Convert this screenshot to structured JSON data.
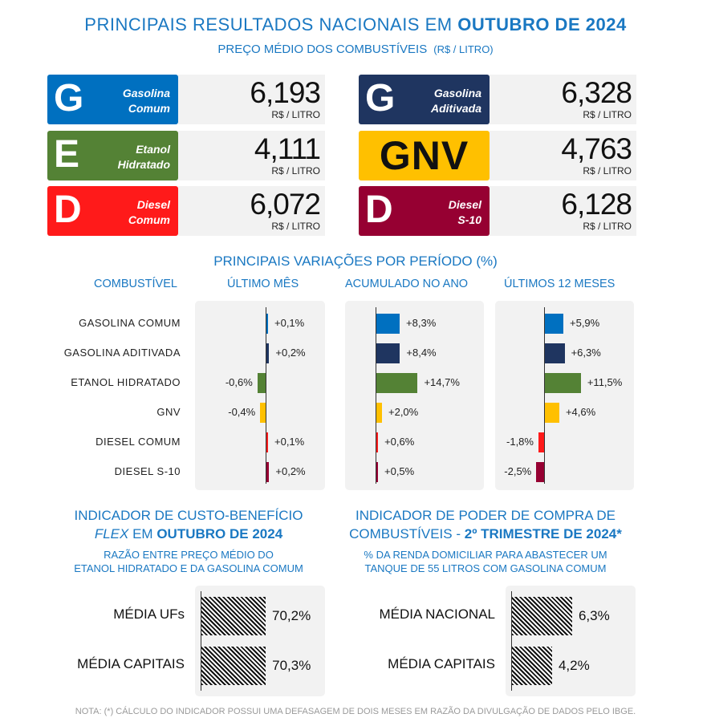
{
  "header": {
    "title_prefix": "PRINCIPAIS RESULTADOS NACIONAIS EM",
    "title_highlight": "OUTUBRO DE 2024",
    "subtitle": "PREÇO MÉDIO DOS COMBUSTÍVEIS",
    "subtitle_unit": "(R$ / LITRO)"
  },
  "prices": [
    {
      "letter": "G",
      "name1": "Gasolina",
      "name2": "Comum",
      "value": "6,193",
      "unit": "R$ / LITRO",
      "color": "#0070c0"
    },
    {
      "letter": "E",
      "name1": "Etanol",
      "name2": "Hidratado",
      "value": "4,111",
      "unit": "R$ / LITRO",
      "color": "#548235"
    },
    {
      "letter": "D",
      "name1": "Diesel",
      "name2": "Comum",
      "value": "6,072",
      "unit": "R$ / LITRO",
      "color": "#ff1a1a"
    },
    {
      "letter": "G",
      "name1": "Gasolina",
      "name2": "Aditivada",
      "value": "6,328",
      "unit": "R$ / LITRO",
      "color": "#1f3560"
    },
    {
      "letter": "GNV",
      "name1": "",
      "name2": "",
      "value": "4,763",
      "unit": "R$ / LITRO",
      "color": "#ffc000"
    },
    {
      "letter": "D",
      "name1": "Diesel",
      "name2": "S-10",
      "value": "6,128",
      "unit": "R$ / LITRO",
      "color": "#960032"
    }
  ],
  "chart_data": [
    {
      "type": "bar",
      "title": "PRINCIPAIS VARIAÇÕES POR PERÍODO (%)",
      "category_header": "COMBUSTÍVEL",
      "categories": [
        "GASOLINA COMUM",
        "GASOLINA ADITIVADA",
        "ETANOL HIDRATADO",
        "GNV",
        "DIESEL COMUM",
        "DIESEL  S-10"
      ],
      "colors": [
        "#0070c0",
        "#1f3560",
        "#548235",
        "#ffc000",
        "#ff1a1a",
        "#960032"
      ],
      "series": [
        {
          "name": "ÚLTIMO MÊS",
          "values": [
            0.1,
            0.2,
            -0.6,
            -0.4,
            0.1,
            0.2
          ],
          "labels": [
            "+0,1%",
            "+0,2%",
            "-0,6%",
            "-0,4%",
            "+0,1%",
            "+0,2%"
          ]
        },
        {
          "name": "ACUMULADO NO ANO",
          "values": [
            8.3,
            8.4,
            14.7,
            2.0,
            0.6,
            0.5
          ],
          "labels": [
            "+8,3%",
            "+8,4%",
            "+14,7%",
            "+2,0%",
            "+0,6%",
            "+0,5%"
          ]
        },
        {
          "name": "ÚLTIMOS 12 MESES",
          "values": [
            5.9,
            6.3,
            11.5,
            4.6,
            -1.8,
            -2.5
          ],
          "labels": [
            "+5,9%",
            "+6,3%",
            "+11,5%",
            "+4,6%",
            "-1,8%",
            "-2,5%"
          ]
        }
      ]
    },
    {
      "type": "bar",
      "title_line1": "INDICADOR DE CUSTO-BENEFÍCIO",
      "title_flex": "FLEX",
      "title_em": "EM",
      "title_highlight": "OUTUBRO  DE 2024",
      "subtitle_line1": "RAZÃO ENTRE PREÇO MÉDIO DO",
      "subtitle_line2": "ETANOL HIDRATADO E DA GASOLINA COMUM",
      "categories": [
        "MÉDIA UFs",
        "MÉDIA CAPITAIS"
      ],
      "values": [
        70.2,
        70.3
      ],
      "labels": [
        "70,2%",
        "70,3%"
      ]
    },
    {
      "type": "bar",
      "title_line1": "INDICADOR DE PODER DE COMPRA DE",
      "title_line2_prefix": "COMBUSTÍVEIS -",
      "title_highlight": "2º TRIMESTRE DE 2024*",
      "subtitle_line1": "% DA RENDA DOMICILIAR PARA ABASTECER UM",
      "subtitle_line2": "TANQUE DE 55 LITROS COM GASOLINA COMUM",
      "categories": [
        "MÉDIA NACIONAL",
        "MÉDIA CAPITAIS"
      ],
      "values": [
        6.3,
        4.2
      ],
      "labels": [
        "6,3%",
        "4,2%"
      ]
    }
  ],
  "footnote": "NOTA: (*) CÁLCULO DO INDICADOR POSSUI UMA DEFASAGEM DE DOIS MESES EM RAZÃO DA DIVULGAÇÃO DE DADOS PELO IBGE."
}
